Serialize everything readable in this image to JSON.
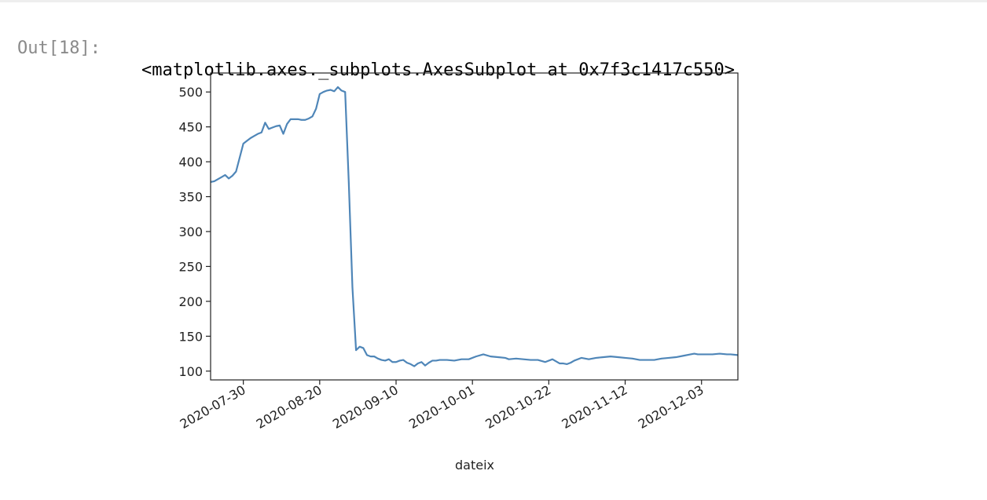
{
  "notebook": {
    "out_prompt": "Out[18]:",
    "out_text": "<matplotlib.axes._subplots.AxesSubplot at 0x7f3c1417c550>"
  },
  "colors": {
    "line": "#4f86b8",
    "axes": "#222222",
    "text": "#222222",
    "prompt": "#8a8a8a"
  },
  "chart_data": {
    "type": "line",
    "title": "",
    "xlabel": "dateix",
    "ylabel": "",
    "ylim": [
      87.4,
      527.2
    ],
    "xlim": [
      "2020-07-21",
      "2020-12-13"
    ],
    "yticks": [
      100,
      150,
      200,
      250,
      300,
      350,
      400,
      450,
      500
    ],
    "xticks": [
      "2020-07-30",
      "2020-08-20",
      "2020-09-10",
      "2020-10-01",
      "2020-10-22",
      "2020-11-12",
      "2020-12-03"
    ],
    "grid": false,
    "legend": "none",
    "series": [
      {
        "x": [
          "2020-07-21",
          "2020-07-22",
          "2020-07-23",
          "2020-07-24",
          "2020-07-25",
          "2020-07-26",
          "2020-07-27",
          "2020-07-28",
          "2020-07-30",
          "2020-07-31",
          "2020-08-01",
          "2020-08-02",
          "2020-08-03",
          "2020-08-04",
          "2020-08-05",
          "2020-08-06",
          "2020-08-07",
          "2020-08-08",
          "2020-08-09",
          "2020-08-10",
          "2020-08-11",
          "2020-08-12",
          "2020-08-13",
          "2020-08-14",
          "2020-08-15",
          "2020-08-16",
          "2020-08-17",
          "2020-08-18",
          "2020-08-19",
          "2020-08-20",
          "2020-08-21",
          "2020-08-22",
          "2020-08-23",
          "2020-08-24",
          "2020-08-25",
          "2020-08-26",
          "2020-08-27",
          "2020-08-28",
          "2020-08-29",
          "2020-08-30",
          "2020-08-31",
          "2020-09-01",
          "2020-09-02",
          "2020-09-03",
          "2020-09-04",
          "2020-09-05",
          "2020-09-06",
          "2020-09-07",
          "2020-09-08",
          "2020-09-09",
          "2020-09-10",
          "2020-09-11",
          "2020-09-12",
          "2020-09-13",
          "2020-09-14",
          "2020-09-15",
          "2020-09-16",
          "2020-09-17",
          "2020-09-18",
          "2020-09-19",
          "2020-09-20",
          "2020-09-21",
          "2020-09-22",
          "2020-09-24",
          "2020-09-26",
          "2020-09-28",
          "2020-09-30",
          "2020-10-02",
          "2020-10-04",
          "2020-10-06",
          "2020-10-08",
          "2020-10-10",
          "2020-10-11",
          "2020-10-13",
          "2020-10-15",
          "2020-10-17",
          "2020-10-19",
          "2020-10-21",
          "2020-10-23",
          "2020-10-25",
          "2020-10-26",
          "2020-10-27",
          "2020-10-28",
          "2020-10-29",
          "2020-10-31",
          "2020-11-01",
          "2020-11-02",
          "2020-11-04",
          "2020-11-06",
          "2020-11-08",
          "2020-11-10",
          "2020-11-12",
          "2020-11-14",
          "2020-11-16",
          "2020-11-18",
          "2020-11-20",
          "2020-11-22",
          "2020-11-24",
          "2020-11-26",
          "2020-11-28",
          "2020-11-30",
          "2020-12-01",
          "2020-12-02",
          "2020-12-04",
          "2020-12-06",
          "2020-12-08",
          "2020-12-10",
          "2020-12-11",
          "2020-12-13"
        ],
        "y": [
          371,
          372,
          375,
          378,
          381,
          376,
          380,
          386,
          426,
          430,
          434,
          437,
          440,
          442,
          456,
          447,
          449,
          451,
          452,
          440,
          454,
          461,
          461,
          461,
          460,
          460,
          462,
          465,
          476,
          497,
          500,
          502,
          503,
          501,
          507,
          502,
          500,
          370,
          220,
          130,
          135,
          133,
          123,
          121,
          121,
          118,
          116,
          115,
          117,
          113,
          113,
          115,
          116,
          112,
          110,
          107,
          111,
          113,
          108,
          112,
          115,
          115,
          116,
          116,
          115,
          117,
          117,
          121,
          124,
          121,
          120,
          119,
          117,
          118,
          117,
          116,
          116,
          113,
          117,
          111,
          111,
          110,
          112,
          115,
          119,
          118,
          117,
          119,
          120,
          121,
          120,
          119,
          118,
          116,
          116,
          116,
          118,
          119,
          120,
          122,
          124,
          125,
          124,
          124,
          124,
          125,
          124,
          124,
          123
        ]
      }
    ]
  }
}
